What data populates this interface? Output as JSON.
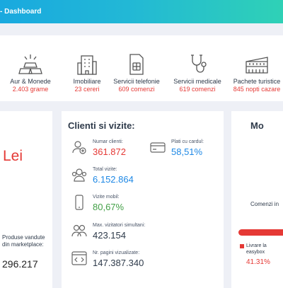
{
  "header": {
    "title": "- Dashboard"
  },
  "categories": [
    {
      "label": "Aur & Monede",
      "value": "2.403 grame",
      "icon": "gold-bars-icon"
    },
    {
      "label": "Imobiliare",
      "value": "23 cereri",
      "icon": "building-icon"
    },
    {
      "label": "Servicii telefonie",
      "value": "609 comenzi",
      "icon": "sim-card-icon"
    },
    {
      "label": "Servicii medicale",
      "value": "619 comenzi",
      "icon": "stethoscope-icon"
    },
    {
      "label": "Pachete turistice",
      "value": "845 nopti cazare",
      "icon": "colosseum-icon"
    }
  ],
  "left_card": {
    "currency": "Lei",
    "products_label": "Produse vandute din marketplace:",
    "products_value": "296.217"
  },
  "clients": {
    "title": "Clienti si vizite:",
    "stats": [
      {
        "label": "Numar clienti:",
        "value": "361.872",
        "color": "#e53935",
        "icon": "add-user-icon"
      },
      {
        "label": "Plati cu cardul:",
        "value": "58,51%",
        "color": "#1e88e5",
        "icon": "credit-card-icon"
      },
      {
        "label": "Total vizite:",
        "value": "6.152.864",
        "color": "#1e88e5",
        "icon": "users-icon"
      },
      {
        "label": "Vizite mobil:",
        "value": "80,67%",
        "color": "#43a047",
        "icon": "mobile-icon"
      },
      {
        "label": "Max. vizitatori simultani:",
        "value": "423.154",
        "color": "#2e3a4a",
        "icon": "group-icon"
      },
      {
        "label": "Nr. pagini vizualizate:",
        "value": "147.387.340",
        "color": "#2e3a4a",
        "icon": "code-window-icon"
      }
    ]
  },
  "right_card": {
    "title": "Mo",
    "orders_label": "Comenzi in",
    "legend_label": "Livrare la easybox",
    "legend_value": "41.31%",
    "accent": "#e53935"
  }
}
